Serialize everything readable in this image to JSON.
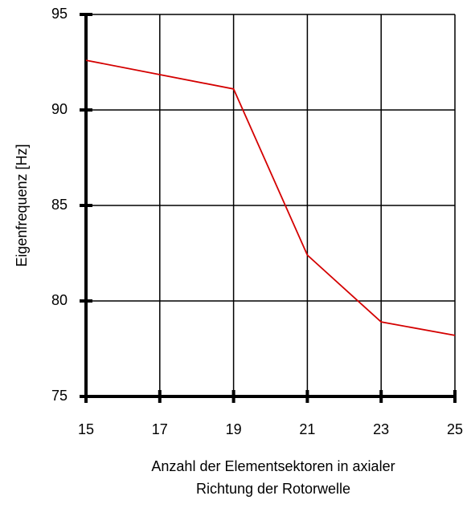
{
  "chart_data": {
    "type": "line",
    "xlabel": [
      "Anzahl der Elementsektoren in axialer",
      "Richtung der Rotorwelle"
    ],
    "ylabel": "Eigenfrequenz [Hz]",
    "x": [
      15,
      19,
      21,
      23,
      25
    ],
    "series": [
      {
        "name": "Eigenfrequenz",
        "color": "#d40000",
        "values": [
          92.6,
          91.1,
          82.4,
          78.9,
          78.2
        ]
      }
    ],
    "xlim": [
      15,
      25
    ],
    "xticks": [
      15,
      17,
      19,
      21,
      23,
      25
    ],
    "ylim": [
      75,
      95
    ],
    "yticks": [
      75,
      80,
      85,
      90,
      95
    ],
    "grid": true
  }
}
